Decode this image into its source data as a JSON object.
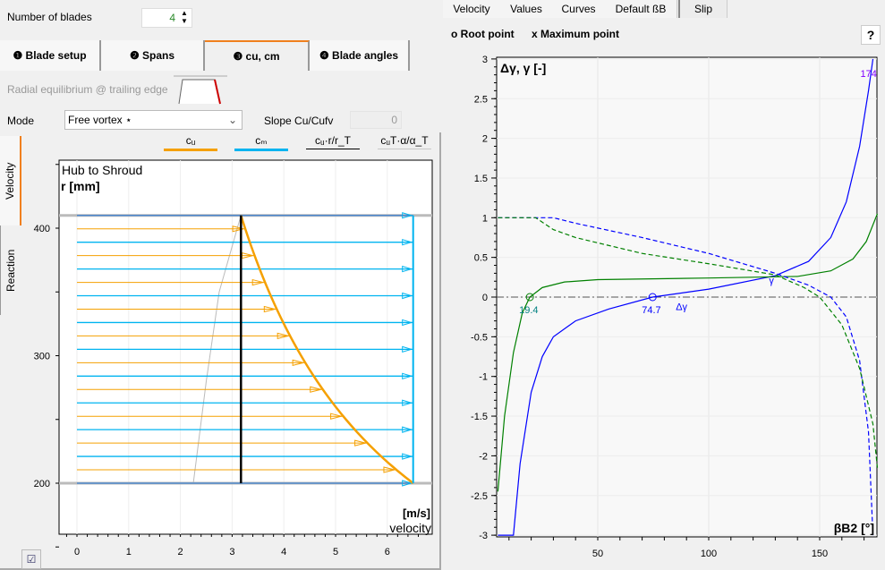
{
  "blades": {
    "label": "Number of blades",
    "value": "4"
  },
  "tabs": [
    {
      "label": "❶ Blade setup"
    },
    {
      "label": "❷ Spans"
    },
    {
      "label": "❸ cu, cm"
    },
    {
      "label": "❹ Blade angles"
    }
  ],
  "active_tab": 2,
  "radial_label": "Radial equilibrium @ trailing edge",
  "mode": {
    "label": "Mode",
    "value": "Free vortex ⋆"
  },
  "slope": {
    "label": "Slope Cu/Cufv",
    "value": "0"
  },
  "legend": [
    {
      "label": "cᵤ",
      "color": "#f5a000"
    },
    {
      "label": "cₘ",
      "color": "#00b4f0"
    },
    {
      "label": "cᵤ·r/r_T",
      "color": "#000000"
    },
    {
      "label": "cᵤT·α/α_T",
      "color": "#c8c8c8"
    }
  ],
  "side_tabs": [
    "Velocity",
    "Reaction"
  ],
  "right_tabs": [
    "Velocity",
    "Values",
    "Curves",
    "Default ßB",
    "Slip"
  ],
  "markers": {
    "root": "o Root point",
    "max": "x Maximum point"
  },
  "help_label": "?",
  "chart_data": [
    {
      "type": "line",
      "title": "Hub to Shroud",
      "ylabel": "r [mm]",
      "xlabel": "[m/s]",
      "xlabel2": "velocity",
      "xlim": [
        -0.35,
        6.85
      ],
      "ylim": [
        120,
        450
      ],
      "xticks": [
        0,
        1,
        2,
        3,
        4,
        5,
        6
      ],
      "yticks": [
        200,
        300,
        400
      ],
      "hub_r": 200,
      "shroud_r": 410,
      "cm": 6.5,
      "cu_hub": 6.5,
      "cu_ref_r": 200,
      "gray_line": [
        [
          2.25,
          200
        ],
        [
          2.5,
          280
        ],
        [
          2.75,
          350
        ],
        [
          3.17,
          410
        ]
      ],
      "span_count": 21
    },
    {
      "type": "line",
      "ylabel": "Δγ, γ [-]",
      "xlabel": "βB2 [°]",
      "xlim": [
        4.4,
        176
      ],
      "ylim": [
        -3,
        3
      ],
      "xticks": [
        50,
        100,
        150
      ],
      "yticks": [
        -3,
        -2.5,
        -2,
        -1.5,
        -1,
        -0.5,
        0,
        0.5,
        1,
        1.5,
        2,
        2.5,
        3
      ],
      "series": [
        {
          "name": "Δγ",
          "color": "#0000ff",
          "dash": false,
          "points": [
            [
              5,
              -3
            ],
            [
              12,
              -3
            ],
            [
              15,
              -2.1
            ],
            [
              20,
              -1.2
            ],
            [
              25,
              -0.75
            ],
            [
              30,
              -0.5
            ],
            [
              40,
              -0.3
            ],
            [
              55,
              -0.15
            ],
            [
              74.7,
              0
            ],
            [
              100,
              0.1
            ],
            [
              130,
              0.27
            ],
            [
              145,
              0.45
            ],
            [
              155,
              0.75
            ],
            [
              162,
              1.2
            ],
            [
              168,
              1.9
            ],
            [
              172,
              2.6
            ],
            [
              174,
              3
            ]
          ]
        },
        {
          "name": "γ",
          "color": "#008000",
          "dash": false,
          "points": [
            [
              5,
              -2.45
            ],
            [
              8,
              -1.5
            ],
            [
              12,
              -0.7
            ],
            [
              16,
              -0.2
            ],
            [
              19.4,
              0
            ],
            [
              25,
              0.12
            ],
            [
              35,
              0.19
            ],
            [
              50,
              0.22
            ],
            [
              100,
              0.24
            ],
            [
              140,
              0.26
            ],
            [
              155,
              0.33
            ],
            [
              165,
              0.48
            ],
            [
              171,
              0.7
            ],
            [
              176,
              1.05
            ]
          ]
        },
        {
          "name": "",
          "color": "#0000ff",
          "dash": true,
          "points": [
            [
              5,
              1
            ],
            [
              30,
              1
            ],
            [
              40,
              0.93
            ],
            [
              70,
              0.75
            ],
            [
              100,
              0.55
            ],
            [
              130,
              0.3
            ],
            [
              145,
              0.15
            ],
            [
              155,
              0
            ],
            [
              162,
              -0.25
            ],
            [
              168,
              -0.8
            ],
            [
              172,
              -1.7
            ],
            [
              174,
              -3
            ]
          ]
        },
        {
          "name": "",
          "color": "#008000",
          "dash": true,
          "points": [
            [
              5,
              1
            ],
            [
              22,
              1
            ],
            [
              30,
              0.85
            ],
            [
              40,
              0.75
            ],
            [
              70,
              0.55
            ],
            [
              100,
              0.42
            ],
            [
              130,
              0.28
            ],
            [
              143,
              0.12
            ],
            [
              150,
              0
            ],
            [
              160,
              -0.35
            ],
            [
              168,
              -0.9
            ],
            [
              174,
              -1.6
            ],
            [
              176,
              -2.15
            ]
          ]
        }
      ],
      "annotations": [
        {
          "text": "19.4",
          "x": 19.4,
          "y": 0,
          "color": "#008080"
        },
        {
          "text": "74.7",
          "x": 74.7,
          "y": 0,
          "color": "#0000ff"
        },
        {
          "text": "Δγ",
          "x": 90,
          "y": -0.05,
          "color": "#0000ff"
        },
        {
          "text": "γ",
          "x": 132,
          "y": 0.17,
          "color": "#0000ff"
        },
        {
          "text": "174",
          "x": 174,
          "y": 3,
          "color": "#8000ff"
        }
      ]
    }
  ]
}
